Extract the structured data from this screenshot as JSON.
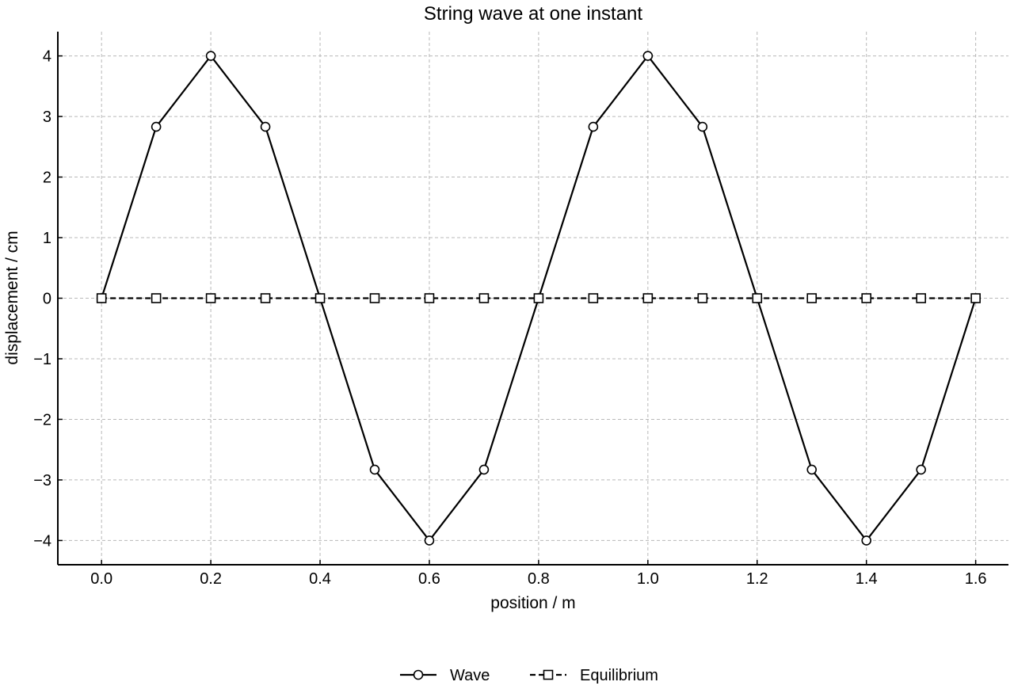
{
  "chart_data": {
    "type": "line",
    "title": "String wave at one instant",
    "xlabel": "position / m",
    "ylabel": "displacement / cm",
    "xlim": [
      -0.08,
      1.66
    ],
    "ylim": [
      -4.4,
      4.4
    ],
    "xticks": [
      0.0,
      0.2,
      0.4,
      0.6,
      0.8,
      1.0,
      1.2,
      1.4,
      1.6
    ],
    "xtick_labels": [
      "0.0",
      "0.2",
      "0.4",
      "0.6",
      "0.8",
      "1.0",
      "1.2",
      "1.4",
      "1.6"
    ],
    "yticks": [
      -4,
      -3,
      -2,
      -1,
      0,
      1,
      2,
      3,
      4
    ],
    "ytick_labels": [
      "−4",
      "−3",
      "−2",
      "−1",
      "0",
      "1",
      "2",
      "3",
      "4"
    ],
    "grid": true,
    "legend_position": "bottom-center",
    "x": [
      0.0,
      0.1,
      0.2,
      0.3,
      0.4,
      0.5,
      0.6,
      0.7,
      0.8,
      0.9,
      1.0,
      1.1,
      1.2,
      1.3,
      1.4,
      1.5,
      1.6
    ],
    "series": [
      {
        "name": "Wave",
        "marker": "circle",
        "linestyle": "solid",
        "color": "#000000",
        "values": [
          0,
          2.83,
          4,
          2.83,
          0,
          -2.83,
          -4,
          -2.83,
          0,
          2.83,
          4,
          2.83,
          0,
          -2.83,
          -4,
          -2.83,
          0
        ]
      },
      {
        "name": "Equilibrium",
        "marker": "square",
        "linestyle": "dashed",
        "color": "#000000",
        "values": [
          0,
          0,
          0,
          0,
          0,
          0,
          0,
          0,
          0,
          0,
          0,
          0,
          0,
          0,
          0,
          0,
          0
        ]
      }
    ]
  }
}
